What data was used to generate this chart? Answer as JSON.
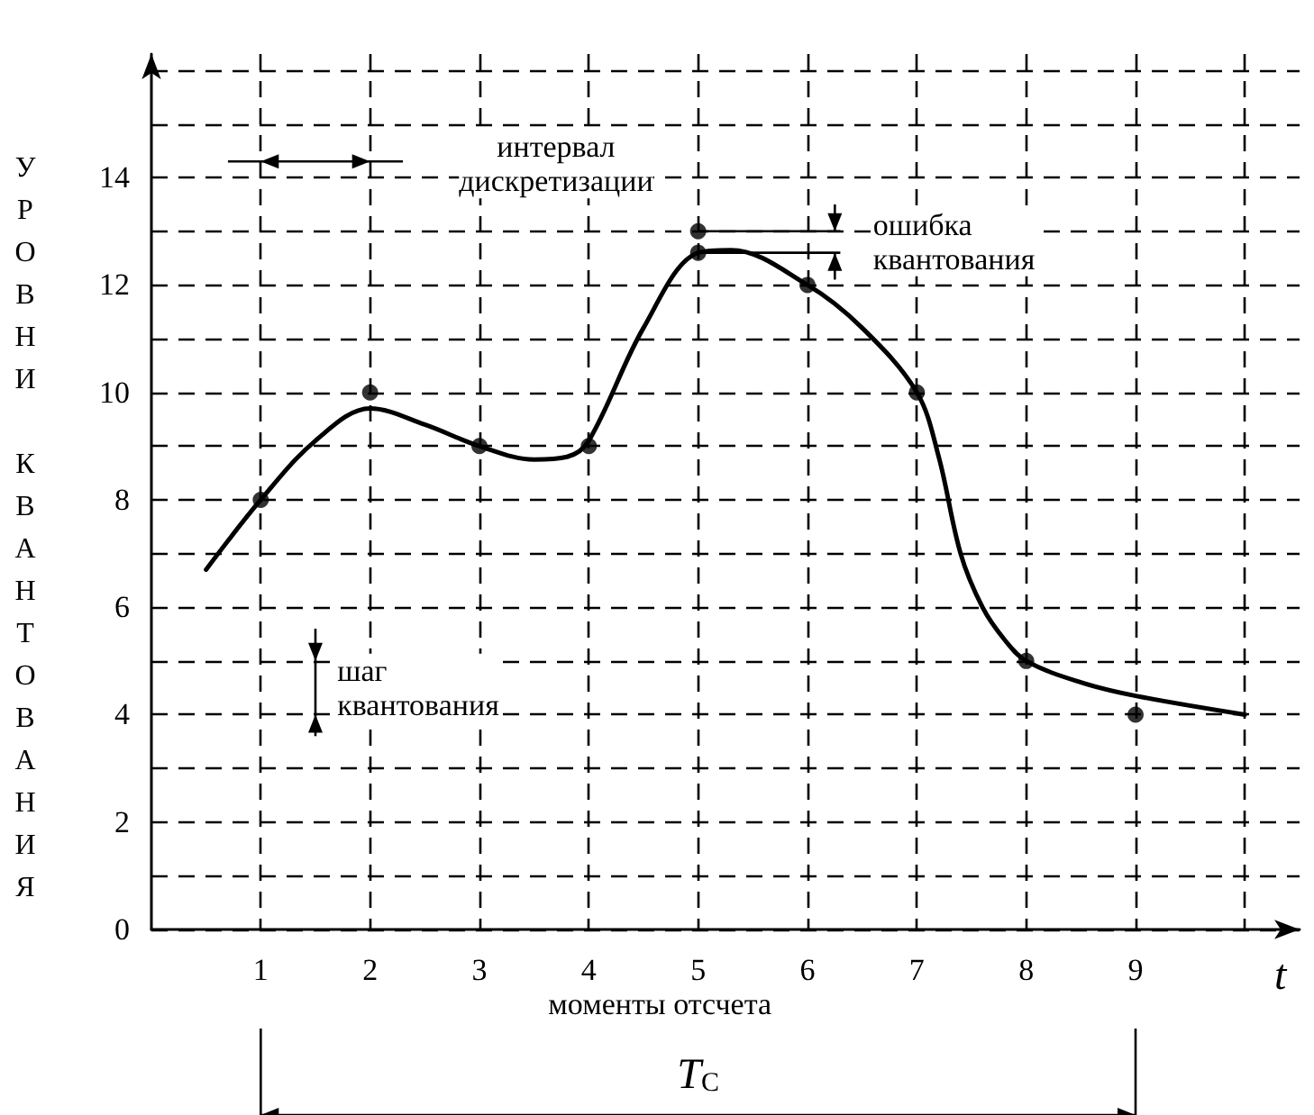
{
  "chart_data": {
    "type": "line",
    "xlabel": "t",
    "ylabel": "УРОВНИ КВАНТОВАНИЯ",
    "xlim": [
      0,
      10.5
    ],
    "ylim": [
      0,
      16.3
    ],
    "xticks": [
      1,
      2,
      3,
      4,
      5,
      6,
      7,
      8,
      9,
      {
        "value": 10,
        "label": null
      }
    ],
    "yticks": [
      0,
      {
        "value": 1,
        "label": null
      },
      2,
      {
        "value": 3,
        "label": null
      },
      4,
      {
        "value": 5,
        "label": null
      },
      6,
      {
        "value": 7,
        "label": null
      },
      8,
      {
        "value": 9,
        "label": null
      },
      10,
      {
        "value": 11,
        "label": null
      },
      12,
      {
        "value": 13,
        "label": null
      },
      14,
      {
        "value": 15,
        "label": null
      },
      {
        "value": 16,
        "label": null
      }
    ],
    "grid": true,
    "marker": "circle",
    "line_style": "solid",
    "series": [
      {
        "color": "#000000",
        "marker": "none",
        "x": [
          0.5,
          1,
          1.5,
          2,
          2.5,
          3,
          3.5,
          3.8,
          4,
          4.5,
          5,
          5.3,
          6,
          6.5,
          7,
          7.2,
          7.4,
          7.6,
          7.8,
          8,
          8.5,
          9,
          10
        ],
        "values": [
          6.7,
          8,
          9.1,
          9.7,
          9.4,
          9,
          8.75,
          8.8,
          9.1,
          11.2,
          12.6,
          12.65,
          12,
          11.2,
          10,
          8.8,
          7,
          6,
          5.4,
          5,
          4.6,
          4.35,
          4
        ]
      },
      {
        "type": "scatter",
        "color": "#000000",
        "x": [
          1,
          2,
          3,
          4,
          5,
          6,
          7,
          8,
          9
        ],
        "values": [
          8,
          10,
          9,
          9,
          13,
          12,
          10,
          5,
          4
        ]
      },
      {
        "type": "scatter",
        "color": "#000000",
        "x": [
          5
        ],
        "values": [
          12.6
        ]
      }
    ],
    "annotations": [
      "интервал дискретизации",
      {
        "text": "ошибка квантования",
        "x": 5,
        "y": 12.6
      },
      "шаг квантования",
      "моменты отсчета",
      "T$_{C}$"
    ]
  }
}
